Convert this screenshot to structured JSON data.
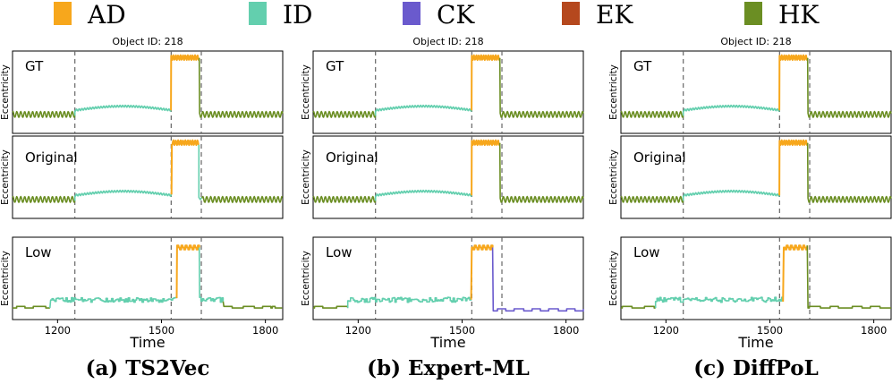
{
  "legend": [
    {
      "name": "AD",
      "color": "#f7a71c"
    },
    {
      "name": "ID",
      "color": "#63cfae"
    },
    {
      "name": "CK",
      "color": "#6a5acd"
    },
    {
      "name": "EK",
      "color": "#b5481e"
    },
    {
      "name": "HK",
      "color": "#6b8e23"
    }
  ],
  "chart_data": [
    {
      "type": "line",
      "title": "Object ID: 218",
      "caption": "(a) TS2Vec",
      "xlabel": "Time",
      "ylabel": "Eccentricity",
      "xlim": [
        1070,
        1850
      ],
      "xticks": [
        1200,
        1500,
        1800
      ],
      "change_points": [
        1250,
        1528,
        1615
      ],
      "rows": [
        {
          "label": "GT",
          "segments": [
            {
              "class": "HK",
              "start": 1070,
              "end": 1250
            },
            {
              "class": "ID",
              "start": 1250,
              "end": 1528
            },
            {
              "class": "AD",
              "start": 1528,
              "end": 1610
            },
            {
              "class": "HK",
              "start": 1610,
              "end": 1850
            }
          ]
        },
        {
          "label": "Original",
          "segments": [
            {
              "class": "HK",
              "start": 1070,
              "end": 1250
            },
            {
              "class": "ID",
              "start": 1250,
              "end": 1530
            },
            {
              "class": "AD",
              "start": 1530,
              "end": 1608
            },
            {
              "class": "ID",
              "start": 1608,
              "end": 1618
            },
            {
              "class": "HK",
              "start": 1618,
              "end": 1850
            }
          ]
        },
        {
          "label": "Low",
          "segments": [
            {
              "class": "HK",
              "start": 1070,
              "end": 1180
            },
            {
              "class": "ID",
              "start": 1180,
              "end": 1545
            },
            {
              "class": "AD",
              "start": 1545,
              "end": 1610
            },
            {
              "class": "ID",
              "start": 1610,
              "end": 1680
            },
            {
              "class": "HK",
              "start": 1680,
              "end": 1850
            }
          ]
        }
      ]
    },
    {
      "type": "line",
      "title": "Object ID: 218",
      "caption": "(b) Expert-ML",
      "xlabel": "Time",
      "ylabel": "Eccentricity",
      "xlim": [
        1070,
        1850
      ],
      "xticks": [
        1200,
        1500,
        1800
      ],
      "change_points": [
        1250,
        1528,
        1615
      ],
      "rows": [
        {
          "label": "GT",
          "segments": [
            {
              "class": "HK",
              "start": 1070,
              "end": 1250
            },
            {
              "class": "ID",
              "start": 1250,
              "end": 1528
            },
            {
              "class": "AD",
              "start": 1528,
              "end": 1610
            },
            {
              "class": "HK",
              "start": 1610,
              "end": 1850
            }
          ]
        },
        {
          "label": "Original",
          "segments": [
            {
              "class": "HK",
              "start": 1070,
              "end": 1250
            },
            {
              "class": "ID",
              "start": 1250,
              "end": 1528
            },
            {
              "class": "AD",
              "start": 1528,
              "end": 1610
            },
            {
              "class": "HK",
              "start": 1610,
              "end": 1850
            }
          ]
        },
        {
          "label": "Low",
          "segments": [
            {
              "class": "HK",
              "start": 1070,
              "end": 1170
            },
            {
              "class": "ID",
              "start": 1170,
              "end": 1528
            },
            {
              "class": "AD",
              "start": 1528,
              "end": 1590
            },
            {
              "class": "CK",
              "start": 1590,
              "end": 1850
            }
          ]
        }
      ]
    },
    {
      "type": "line",
      "title": "Object ID: 218",
      "caption": "(c) DiffPoL",
      "xlabel": "Time",
      "ylabel": "Eccentricity",
      "xlim": [
        1070,
        1850
      ],
      "xticks": [
        1200,
        1500,
        1800
      ],
      "change_points": [
        1250,
        1528,
        1615
      ],
      "rows": [
        {
          "label": "GT",
          "segments": [
            {
              "class": "HK",
              "start": 1070,
              "end": 1250
            },
            {
              "class": "ID",
              "start": 1250,
              "end": 1528
            },
            {
              "class": "AD",
              "start": 1528,
              "end": 1610
            },
            {
              "class": "HK",
              "start": 1610,
              "end": 1850
            }
          ]
        },
        {
          "label": "Original",
          "segments": [
            {
              "class": "HK",
              "start": 1070,
              "end": 1250
            },
            {
              "class": "ID",
              "start": 1250,
              "end": 1528
            },
            {
              "class": "AD",
              "start": 1528,
              "end": 1610
            },
            {
              "class": "HK",
              "start": 1610,
              "end": 1850
            }
          ]
        },
        {
          "label": "Low",
          "segments": [
            {
              "class": "HK",
              "start": 1070,
              "end": 1170
            },
            {
              "class": "ID",
              "start": 1170,
              "end": 1540
            },
            {
              "class": "AD",
              "start": 1540,
              "end": 1610
            },
            {
              "class": "HK",
              "start": 1610,
              "end": 1850
            }
          ]
        }
      ]
    }
  ]
}
